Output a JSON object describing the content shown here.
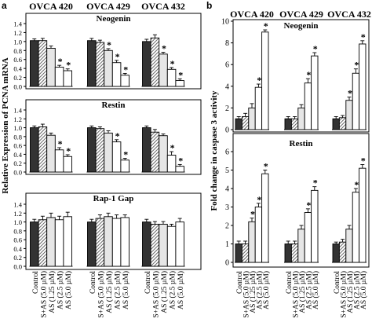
{
  "panels": [
    {
      "letter": "a"
    },
    {
      "letter": "b"
    }
  ],
  "chart_data": [
    {
      "type": "bar",
      "panel": "a",
      "ylabel": "Relative Expression of PCNA mRNA",
      "ylim": [
        0,
        1.4
      ],
      "yticks": [
        "0.0",
        "0.2",
        "0.4",
        "0.6",
        "0.8",
        "1.0",
        "1.2",
        "1.4"
      ],
      "groups": [
        "OVCA 420",
        "OVCA 429",
        "OVCA 432"
      ],
      "categories": [
        "Control",
        "S+AS (5.0 µM)",
        "AS (1.25 µM)",
        "AS (2.5 µM)",
        "AS (5.0 µM)"
      ],
      "rows": [
        {
          "title": "Neogenin",
          "values": [
            [
              1.02,
              1.02,
              0.85,
              0.43,
              0.35
            ],
            [
              1.02,
              0.98,
              0.8,
              0.53,
              0.25
            ],
            [
              1.0,
              1.08,
              0.72,
              0.38,
              0.13
            ]
          ],
          "errors": [
            [
              0.04,
              0.05,
              0.05,
              0.04,
              0.04
            ],
            [
              0.05,
              0.05,
              0.04,
              0.05,
              0.04
            ],
            [
              0.05,
              0.07,
              0.04,
              0.04,
              0.04
            ]
          ],
          "star": [
            [
              0,
              0,
              0,
              1,
              1
            ],
            [
              0,
              0,
              1,
              1,
              1
            ],
            [
              0,
              0,
              1,
              1,
              1
            ]
          ]
        },
        {
          "title": "Restin",
          "values": [
            [
              1.0,
              1.02,
              0.83,
              0.5,
              0.35
            ],
            [
              1.0,
              0.98,
              0.88,
              0.68,
              0.27
            ],
            [
              1.0,
              0.9,
              0.82,
              0.38,
              0.13
            ]
          ],
          "errors": [
            [
              0.04,
              0.06,
              0.05,
              0.05,
              0.04
            ],
            [
              0.04,
              0.04,
              0.05,
              0.05,
              0.04
            ],
            [
              0.04,
              0.06,
              0.04,
              0.08,
              0.04
            ]
          ],
          "star": [
            [
              0,
              0,
              0,
              1,
              1
            ],
            [
              0,
              0,
              0,
              1,
              1
            ],
            [
              0,
              0,
              0,
              1,
              1
            ]
          ]
        },
        {
          "title": "Rap-1 Gap",
          "values": [
            [
              1.0,
              1.05,
              1.1,
              1.05,
              1.12
            ],
            [
              1.0,
              1.08,
              1.12,
              1.08,
              1.1
            ],
            [
              1.0,
              0.95,
              0.95,
              0.9,
              1.0
            ]
          ],
          "errors": [
            [
              0.06,
              0.08,
              0.1,
              0.08,
              0.1
            ],
            [
              0.06,
              0.08,
              0.08,
              0.08,
              0.06
            ],
            [
              0.06,
              0.06,
              0.06,
              0.05,
              0.08
            ]
          ],
          "star": [
            [
              0,
              0,
              0,
              0,
              0
            ],
            [
              0,
              0,
              0,
              0,
              0
            ],
            [
              0,
              0,
              0,
              0,
              0
            ]
          ]
        }
      ]
    },
    {
      "type": "bar",
      "panel": "b",
      "ylabel": "Fold change in caspase 3 activity",
      "groups": [
        "OVCA 420",
        "OVCA 429",
        "OVCA 432"
      ],
      "categories": [
        "Control",
        "S+AS (5.0 µM)",
        "AS (1.25 µM)",
        "AS (2.5 µM)",
        "AS (5.0 µM)"
      ],
      "rows": [
        {
          "title": "Neogenin",
          "ylim": [
            0,
            10
          ],
          "yticks": [
            "0",
            "2",
            "4",
            "6",
            "8",
            "10"
          ],
          "values": [
            [
              1.0,
              1.2,
              2.0,
              3.9,
              9.0
            ],
            [
              1.0,
              1.0,
              2.0,
              4.3,
              6.8
            ],
            [
              1.0,
              1.1,
              2.7,
              5.2,
              7.9
            ]
          ],
          "errors": [
            [
              0.2,
              0.3,
              0.4,
              0.3,
              0.2
            ],
            [
              0.2,
              0.2,
              0.3,
              0.4,
              0.3
            ],
            [
              0.2,
              0.2,
              0.3,
              0.4,
              0.3
            ]
          ],
          "star": [
            [
              0,
              0,
              0,
              1,
              1
            ],
            [
              0,
              0,
              0,
              1,
              1
            ],
            [
              0,
              0,
              1,
              1,
              1
            ]
          ]
        },
        {
          "title": "Restin",
          "ylim": [
            0,
            6
          ],
          "yticks": [
            "0",
            "1",
            "2",
            "3",
            "4",
            "5",
            "6"
          ],
          "values": [
            [
              1.0,
              1.0,
              2.2,
              3.0,
              4.8
            ],
            [
              1.0,
              1.0,
              1.8,
              2.7,
              3.9
            ],
            [
              1.0,
              1.1,
              1.8,
              3.8,
              5.1
            ]
          ],
          "errors": [
            [
              0.15,
              0.15,
              0.2,
              0.2,
              0.2
            ],
            [
              0.15,
              0.15,
              0.2,
              0.2,
              0.2
            ],
            [
              0.1,
              0.15,
              0.2,
              0.2,
              0.2
            ]
          ],
          "star": [
            [
              0,
              0,
              1,
              1,
              1
            ],
            [
              0,
              0,
              0,
              1,
              1
            ],
            [
              0,
              0,
              0,
              1,
              1
            ]
          ]
        }
      ]
    }
  ]
}
